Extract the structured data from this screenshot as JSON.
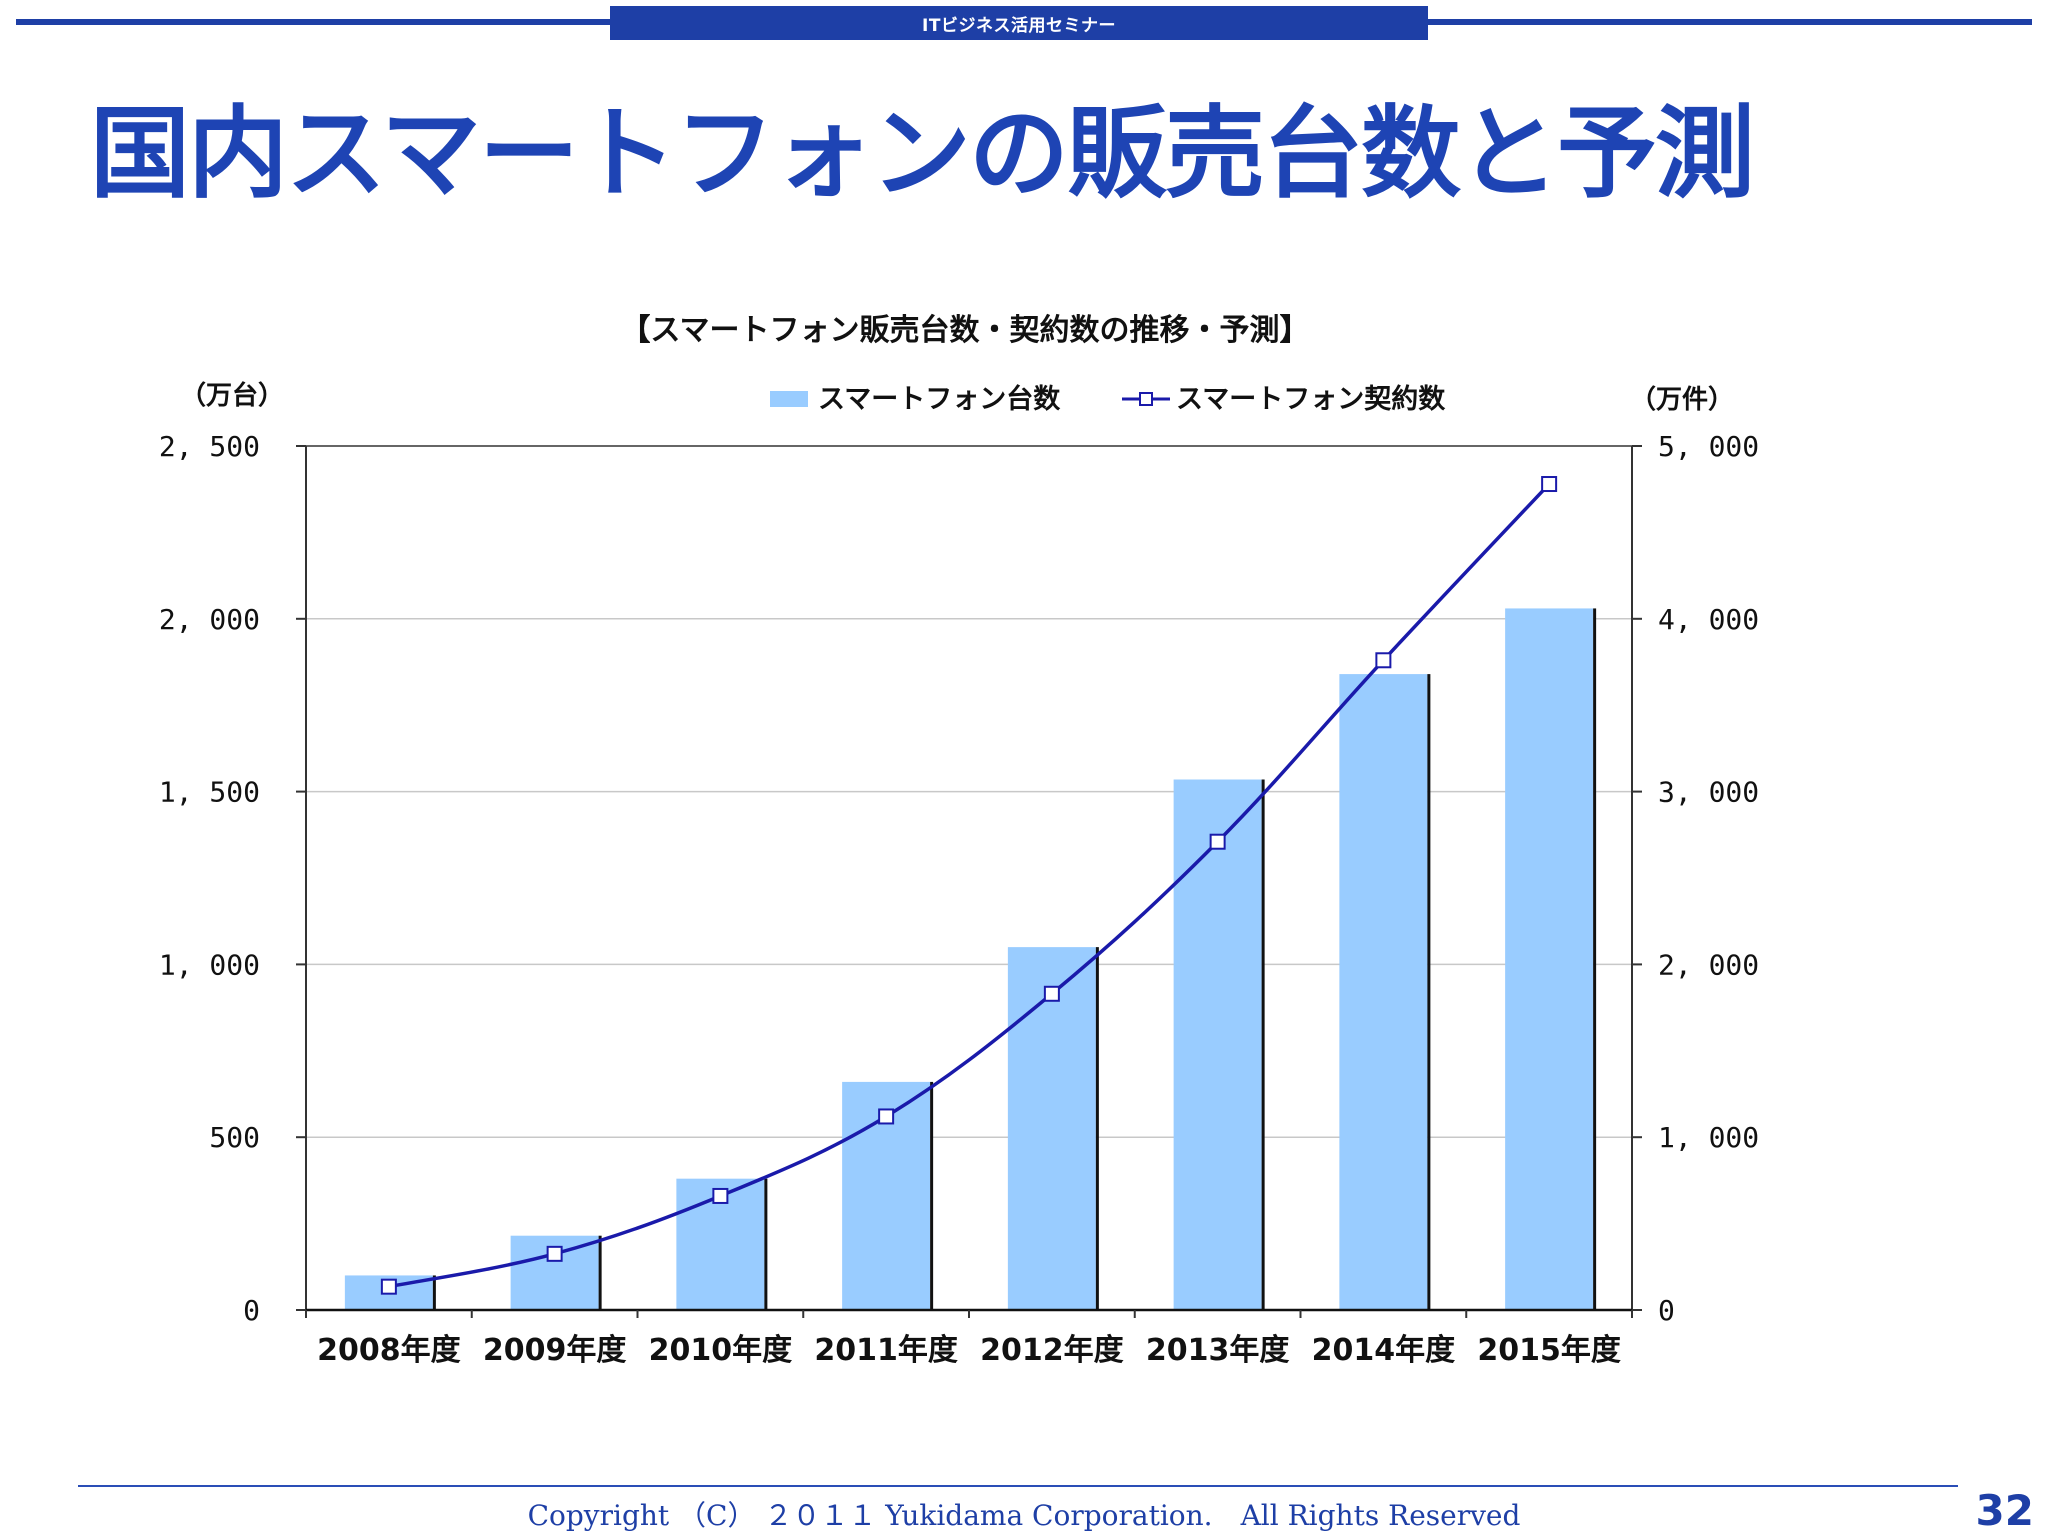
{
  "header": {
    "seminar_label": "ITビジネス活用セミナー"
  },
  "slide": {
    "title": "国内スマートフォンの販売台数と予測",
    "footer": "Copyright （C） ２０１１ Yukidama Corporation.　All Rights Reserved",
    "page_number": "32"
  },
  "colors": {
    "bar": "#99ccff",
    "line": "#1a1aaa",
    "accent": "#1e3fa6"
  },
  "chart_data": {
    "type": "bar",
    "title": "【スマートフォン販売台数・契約数の推移・予測】",
    "categories": [
      "2008年度",
      "2009年度",
      "2010年度",
      "2011年度",
      "2012年度",
      "2013年度",
      "2014年度",
      "2015年度"
    ],
    "left_axis": {
      "unit_label": "（万台）",
      "range": [
        0,
        2500
      ],
      "ticks": [
        "0",
        "500",
        "1, 000",
        "1, 500",
        "2, 000",
        "2, 500"
      ]
    },
    "right_axis": {
      "unit_label": "（万件）",
      "range": [
        0,
        5000
      ],
      "ticks": [
        "0",
        "1, 000",
        "2, 000",
        "3, 000",
        "4, 000",
        "5, 000"
      ]
    },
    "series": [
      {
        "name": "スマートフォン台数",
        "type": "bar",
        "axis": "left",
        "values": [
          100,
          215,
          380,
          660,
          1050,
          1535,
          1840,
          2030
        ]
      },
      {
        "name": "スマートフォン契約数",
        "type": "line",
        "axis": "right",
        "marker": "open-square",
        "values": [
          135,
          325,
          660,
          1120,
          1830,
          2710,
          3760,
          4780
        ]
      }
    ],
    "legend_position": "top-center",
    "grid": "horizontal"
  }
}
